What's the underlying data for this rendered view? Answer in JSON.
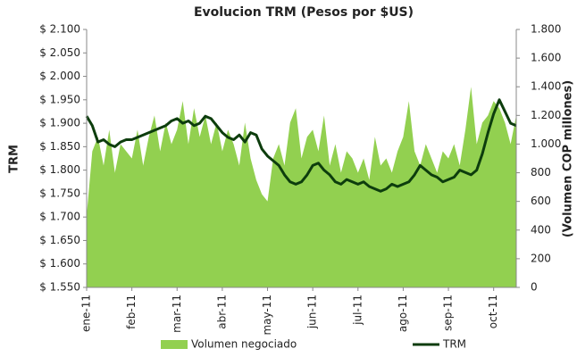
{
  "chart_data": {
    "type": "combo",
    "title": "Evolucion TRM (Pesos por $US)",
    "y_label": "TRM",
    "y2_label": "(Volumen COP millones)",
    "categories": [
      "ene-11",
      null,
      null,
      null,
      null,
      null,
      null,
      null,
      "feb-11",
      null,
      null,
      null,
      null,
      null,
      null,
      null,
      "mar-11",
      null,
      null,
      null,
      null,
      null,
      null,
      null,
      "abr-11",
      null,
      null,
      null,
      null,
      null,
      null,
      null,
      "may-11",
      null,
      null,
      null,
      null,
      null,
      null,
      null,
      "jun-11",
      null,
      null,
      null,
      null,
      null,
      null,
      null,
      "jul-11",
      null,
      null,
      null,
      null,
      null,
      null,
      null,
      "ago-11",
      null,
      null,
      null,
      null,
      null,
      null,
      null,
      "sep-11",
      null,
      null,
      null,
      null,
      null,
      null,
      null,
      "oct-11",
      null,
      null,
      null,
      null
    ],
    "series": [
      {
        "name": "Volumen negociado",
        "type": "area",
        "axis": "y2",
        "color": "#92d050",
        "values": [
          500,
          950,
          1050,
          850,
          1100,
          800,
          1000,
          950,
          900,
          1100,
          850,
          1050,
          1200,
          950,
          1150,
          1000,
          1100,
          1300,
          1000,
          1250,
          1050,
          1200,
          1000,
          1150,
          950,
          1100,
          1000,
          850,
          1150,
          900,
          750,
          650,
          600,
          900,
          1000,
          850,
          1150,
          1250,
          900,
          1050,
          1100,
          950,
          1200,
          850,
          1000,
          800,
          950,
          900,
          800,
          900,
          750,
          1050,
          850,
          900,
          800,
          950,
          1050,
          1300,
          950,
          850,
          1000,
          900,
          800,
          950,
          900,
          1000,
          850,
          1100,
          1400,
          1000,
          1150,
          1200,
          1300,
          1250,
          1150,
          1000,
          1200
        ]
      },
      {
        "name": "TRM",
        "type": "line",
        "axis": "y",
        "color": "#0d3d0d",
        "values": [
          1915,
          1895,
          1860,
          1865,
          1855,
          1850,
          1860,
          1865,
          1865,
          1870,
          1875,
          1880,
          1885,
          1890,
          1895,
          1905,
          1910,
          1900,
          1905,
          1895,
          1900,
          1915,
          1910,
          1895,
          1880,
          1870,
          1865,
          1875,
          1860,
          1880,
          1875,
          1845,
          1830,
          1820,
          1810,
          1790,
          1775,
          1770,
          1775,
          1790,
          1810,
          1815,
          1800,
          1790,
          1775,
          1770,
          1780,
          1775,
          1770,
          1775,
          1765,
          1760,
          1755,
          1760,
          1770,
          1765,
          1770,
          1775,
          1790,
          1810,
          1800,
          1790,
          1785,
          1775,
          1780,
          1785,
          1800,
          1795,
          1790,
          1800,
          1835,
          1880,
          1920,
          1950,
          1925,
          1900,
          1895
        ]
      }
    ],
    "ylim": [
      1550,
      2100
    ],
    "yticks": [
      {
        "value": 1550,
        "label": "$ 1.550"
      },
      {
        "value": 1600,
        "label": "$ 1.600"
      },
      {
        "value": 1650,
        "label": "$ 1.650"
      },
      {
        "value": 1700,
        "label": "$ 1.700"
      },
      {
        "value": 1750,
        "label": "$ 1.750"
      },
      {
        "value": 1800,
        "label": "$ 1.800"
      },
      {
        "value": 1850,
        "label": "$ 1.850"
      },
      {
        "value": 1900,
        "label": "$ 1.900"
      },
      {
        "value": 1950,
        "label": "$ 1.950"
      },
      {
        "value": 2000,
        "label": "$ 2.000"
      },
      {
        "value": 2050,
        "label": "$ 2.050"
      },
      {
        "value": 2100,
        "label": "$ 2.100"
      }
    ],
    "y2lim": [
      0,
      1800
    ],
    "y2ticks": [
      0,
      200,
      400,
      600,
      800,
      {
        "value": 1000,
        "label": "1.000"
      },
      {
        "value": 1200,
        "label": "1.200"
      },
      {
        "value": 1400,
        "label": "1.400"
      },
      {
        "value": 1600,
        "label": "1.600"
      },
      {
        "value": 1800,
        "label": "1.800"
      }
    ],
    "legend": "bottom"
  }
}
